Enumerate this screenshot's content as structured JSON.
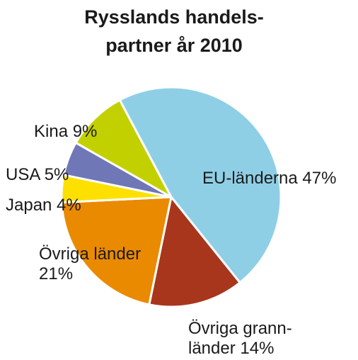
{
  "chart_data": {
    "type": "pie",
    "title_lines": [
      "Rysslands handels-",
      "partner år 2010"
    ],
    "slices": [
      {
        "name": "EU-länderna",
        "value": 47,
        "color": "#8fcfe6",
        "label_lines": [
          "EU-länderna 47%"
        ]
      },
      {
        "name": "Övriga grannländer",
        "value": 14,
        "color": "#a8361c",
        "label_lines": [
          "Övriga grann-",
          "länder 14%"
        ]
      },
      {
        "name": "Övriga länder",
        "value": 21,
        "color": "#ea8a00",
        "label_lines": [
          "Övriga länder",
          "21%"
        ]
      },
      {
        "name": "Japan",
        "value": 4,
        "color": "#fde000",
        "label_lines": [
          "Japan 4%"
        ]
      },
      {
        "name": "USA",
        "value": 5,
        "color": "#6f77b6",
        "label_lines": [
          "USA 5%"
        ]
      },
      {
        "name": "Kina",
        "value": 9,
        "color": "#c3d000",
        "label_lines": [
          "Kina 9%"
        ]
      }
    ]
  }
}
